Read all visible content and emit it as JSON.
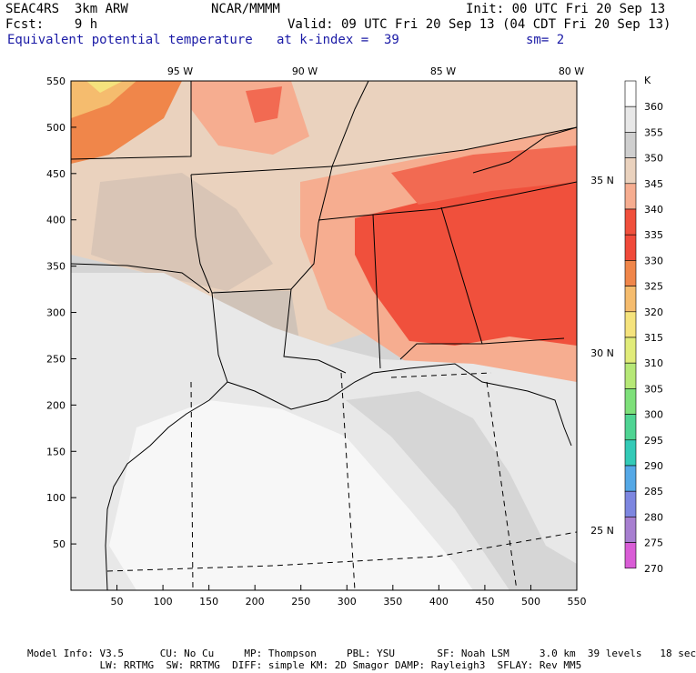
{
  "header": {
    "model": "SEAC4RS  3km ARW",
    "org": "NCAR/MMMM",
    "init": "Init: 00 UTC Fri 20 Sep 13",
    "fcst": "Fcst:    9 h",
    "valid": "Valid: 09 UTC Fri 20 Sep 13 (04 CDT Fri 20 Sep 13)",
    "field": "Equivalent potential temperature",
    "level": "at k-index =  39",
    "smooth": "sm= 2"
  },
  "map": {
    "lon_labels": [
      "95 W",
      "90 W",
      "85 W",
      "80 W"
    ],
    "lat_labels": [
      "35 N",
      "30 N",
      "25 N"
    ],
    "x_ticks": [
      "50",
      "100",
      "150",
      "200",
      "250",
      "300",
      "350",
      "400",
      "450",
      "500",
      "550"
    ],
    "y_ticks": [
      "550",
      "500",
      "450",
      "400",
      "350",
      "300",
      "250",
      "200",
      "150",
      "100",
      "50"
    ]
  },
  "colorbar": {
    "unit": "K",
    "levels": [
      "360",
      "355",
      "350",
      "345",
      "340",
      "335",
      "330",
      "325",
      "320",
      "315",
      "310",
      "305",
      "300",
      "295",
      "290",
      "285",
      "280",
      "275",
      "270"
    ],
    "colors": [
      "#ffffff",
      "#e8e8e8",
      "#cfcfcf",
      "#ead2be",
      "#f6ad90",
      "#f0503c",
      "#f04a3a",
      "#f0864a",
      "#f5bc6e",
      "#f5e37d",
      "#e1ec7a",
      "#b6e877",
      "#7ee07a",
      "#4fd493",
      "#33cab7",
      "#55a8e6",
      "#7d86e0",
      "#a77fd0",
      "#d95dd6"
    ]
  },
  "footer": {
    "line1": "Model Info: V3.5      CU: No Cu     MP: Thompson     PBL: YSU       SF: Noah LSM     3.0 km  39 levels   18 sec",
    "line2": "            LW: RRTMG  SW: RRTMG  DIFF: simple KM: 2D Smagor DAMP: Rayleigh3  SFLAY: Rev MM5"
  }
}
